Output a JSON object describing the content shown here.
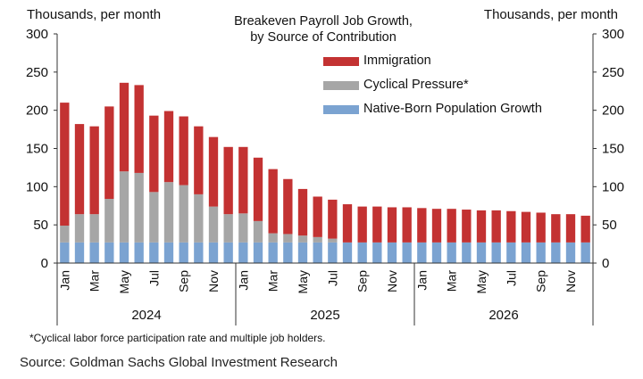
{
  "unit_left": "Thousands, per month",
  "unit_right": "Thousands, per month",
  "footnote": "*Cyclical labor force participation rate and multiple job holders.",
  "source": "Source: Goldman Sachs Global Investment Research",
  "colors": {
    "immigration": "#C33232",
    "cyclical": "#A6A6A6",
    "native": "#7BA3D1"
  },
  "chart_data": {
    "type": "bar",
    "stacked": true,
    "title": "Breakeven Payroll Job Growth, by Source of Contribution",
    "title_lines": [
      "Breakeven Payroll Job Growth,",
      "by Source of Contribution"
    ],
    "ylim": [
      0,
      300
    ],
    "yticks": [
      0,
      50,
      100,
      150,
      200,
      250,
      300
    ],
    "categories": [
      "Jan 2024",
      "Feb 2024",
      "Mar 2024",
      "Apr 2024",
      "May 2024",
      "Jun 2024",
      "Jul 2024",
      "Aug 2024",
      "Sep 2024",
      "Oct 2024",
      "Nov 2024",
      "Dec 2024",
      "Jan 2025",
      "Feb 2025",
      "Mar 2025",
      "Apr 2025",
      "May 2025",
      "Jun 2025",
      "Jul 2025",
      "Aug 2025",
      "Sep 2025",
      "Oct 2025",
      "Nov 2025",
      "Dec 2025",
      "Jan 2026",
      "Feb 2026",
      "Mar 2026",
      "Apr 2026",
      "May 2026",
      "Jun 2026",
      "Jul 2026",
      "Aug 2026",
      "Sep 2026",
      "Oct 2026",
      "Nov 2026",
      "Dec 2026"
    ],
    "tick_labels": [
      "Jan",
      "Mar",
      "May",
      "Jul",
      "Sep",
      "Nov",
      "Jan",
      "Mar",
      "May",
      "Jul",
      "Sep",
      "Nov",
      "Jan",
      "Mar",
      "May",
      "Jul",
      "Sep",
      "Nov"
    ],
    "years": [
      "2024",
      "2025",
      "2026"
    ],
    "series": [
      {
        "name": "Native-Born Population Growth",
        "values": [
          27,
          27,
          27,
          27,
          27,
          27,
          27,
          27,
          27,
          27,
          27,
          27,
          27,
          27,
          27,
          27,
          27,
          27,
          27,
          27,
          27,
          27,
          27,
          27,
          27,
          27,
          27,
          27,
          27,
          27,
          27,
          27,
          27,
          27,
          27,
          27
        ]
      },
      {
        "name": "Cyclical Pressure*",
        "values": [
          22,
          37,
          37,
          57,
          93,
          91,
          66,
          79,
          75,
          63,
          47,
          37,
          38,
          28,
          12,
          11,
          9,
          7,
          5,
          0,
          0,
          0,
          0,
          0,
          0,
          0,
          0,
          0,
          0,
          0,
          0,
          0,
          0,
          0,
          0,
          0
        ]
      },
      {
        "name": "Immigration",
        "values": [
          161,
          118,
          115,
          121,
          116,
          115,
          100,
          93,
          90,
          89,
          91,
          88,
          87,
          83,
          84,
          72,
          61,
          53,
          51,
          50,
          47,
          47,
          46,
          46,
          45,
          44,
          44,
          43,
          42,
          42,
          41,
          40,
          39,
          37,
          37,
          35
        ]
      }
    ],
    "legend_order": [
      "Immigration",
      "Cyclical Pressure*",
      "Native-Born Population Growth"
    ],
    "legend_position": "top-right"
  }
}
